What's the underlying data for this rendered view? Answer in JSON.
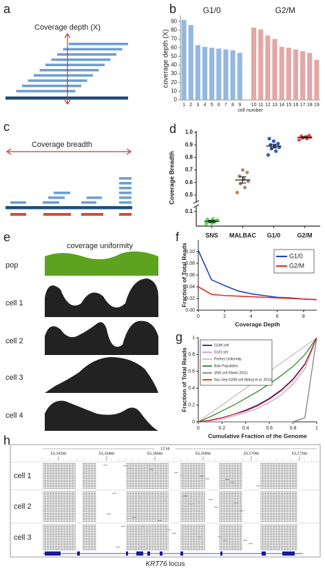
{
  "panel_labels": [
    "a",
    "b",
    "c",
    "d",
    "e",
    "f",
    "g",
    "h"
  ],
  "schematic_a": {
    "title": "Coverage depth (X)"
  },
  "schematic_c": {
    "title": "Coverage breadth"
  },
  "schematic_e": {
    "title": "coverage uniformity",
    "rows": [
      "pop",
      "cell 1",
      "cell 2",
      "cell 3",
      "cell 4"
    ]
  },
  "chart_data": [
    {
      "type": "bar",
      "ylabel": "coverage depth (X)",
      "xlabel": "cell number",
      "categories": [
        "1",
        "2",
        "3",
        "4",
        "5",
        "6",
        "7",
        "8",
        "9",
        null,
        "10",
        "11",
        "12",
        "13",
        "14",
        "15",
        "16",
        "17",
        "18",
        "19"
      ],
      "series": [
        {
          "name": "G1/0",
          "color": "#94b8de",
          "values": [
            92,
            86,
            63,
            61,
            60,
            59,
            58,
            57,
            54,
            null,
            null,
            null,
            null,
            null,
            null,
            null,
            null,
            null,
            null,
            null
          ]
        },
        {
          "name": "G2/M",
          "color": "#e3a7a7",
          "values": [
            null,
            null,
            null,
            null,
            null,
            null,
            null,
            null,
            null,
            null,
            83,
            81,
            74,
            70,
            61,
            60,
            58,
            56,
            54,
            46
          ]
        }
      ],
      "ylim": [
        0,
        95
      ],
      "yticks": [
        0,
        10,
        20,
        30,
        40,
        50,
        60,
        70,
        80,
        90
      ]
    },
    {
      "type": "dot",
      "ylabel": "Coverage Breadth",
      "categories": [
        "SNS",
        "MALBAC",
        "G1/0",
        "G2/M"
      ],
      "colors": [
        "#5cd65c",
        "#b08a6a",
        "#2e5fb8",
        "#d9534f"
      ],
      "points": [
        [
          0.05,
          0.055,
          0.06,
          0.065,
          0.07,
          0.058,
          0.062,
          0.052,
          0.068,
          0.06
        ],
        [
          0.52,
          0.56,
          0.59,
          0.61,
          0.63,
          0.65,
          0.68,
          0.7
        ],
        [
          0.82,
          0.85,
          0.87,
          0.88,
          0.89,
          0.9,
          0.91,
          0.93,
          0.95
        ],
        [
          0.94,
          0.95,
          0.955,
          0.96,
          0.965,
          0.97,
          0.975
        ]
      ],
      "means": [
        0.06,
        0.62,
        0.89,
        0.96
      ],
      "errors": [
        0.004,
        0.025,
        0.015,
        0.005
      ],
      "ylim": [
        0.04,
        1.0
      ],
      "ybreak": [
        0.12,
        0.45
      ],
      "yticks": [
        0.1,
        0.5,
        0.6,
        0.7,
        0.8,
        0.9,
        {
          "value": 1.0,
          "label": "1.0"
        }
      ]
    },
    {
      "type": "line",
      "ylabel": "Fraction of Total Reads",
      "xlabel": "Coverage Depth",
      "x": [
        0,
        1,
        2,
        3,
        4,
        5,
        6,
        7,
        8,
        9
      ],
      "series": [
        {
          "name": "G1/0",
          "color": "#1f3fc4",
          "values": [
            0.102,
            0.052,
            0.042,
            0.033,
            0.028,
            0.025,
            0.022,
            0.021,
            0.019,
            0.018
          ]
        },
        {
          "name": "G2/M",
          "color": "#e0301e",
          "values": [
            0.04,
            0.027,
            0.025,
            0.024,
            0.023,
            0.022,
            0.021,
            0.02,
            0.019,
            0.018
          ]
        }
      ],
      "xlim": [
        0,
        9
      ],
      "xticks": [
        0,
        2,
        4,
        6,
        8
      ],
      "ylim": [
        0,
        0.12
      ],
      "yticks": [
        {
          "value": 0,
          "label": "0.00"
        },
        0.02,
        0.04,
        0.06,
        0.08,
        {
          "value": 0.1,
          "label": "0.10"
        }
      ],
      "legend": "upper right"
    },
    {
      "type": "line",
      "ylabel": "Fraction of Total Reads",
      "xlabel": "Cumulative Fraction of the Genome",
      "x": [
        0,
        0.1,
        0.2,
        0.3,
        0.4,
        0.5,
        0.6,
        0.7,
        0.8,
        0.9,
        1
      ],
      "series": [
        {
          "name": "G2/M cell",
          "color": "#1a1a8c",
          "values": [
            0,
            0.02,
            0.05,
            0.09,
            0.14,
            0.2,
            0.28,
            0.38,
            0.51,
            0.69,
            1
          ]
        },
        {
          "name": "G1/0 cell",
          "color": "#c89ac8",
          "values": [
            0,
            0.012,
            0.035,
            0.07,
            0.11,
            0.16,
            0.23,
            0.32,
            0.45,
            0.63,
            1
          ]
        },
        {
          "name": "Perfect Uniformity",
          "color": "#c8b4b4",
          "values": [
            0,
            0.1,
            0.2,
            0.3,
            0.4,
            0.5,
            0.6,
            0.7,
            0.8,
            0.9,
            1
          ]
        },
        {
          "name": "Bulk Population",
          "color": "#1e7b1e",
          "values": [
            0,
            0.06,
            0.13,
            0.2,
            0.28,
            0.36,
            0.45,
            0.55,
            0.66,
            0.8,
            1
          ]
        },
        {
          "name": "SNS cell (Navin 2011)",
          "color": "#777777",
          "values": [
            0,
            0,
            0,
            0,
            0,
            0,
            0,
            0,
            0,
            0.05,
            1
          ]
        },
        {
          "name": "Nuc-Seq G2/M cell (Wang et al. 2014)",
          "color": "#d62020",
          "values": [
            0,
            0.02,
            0.05,
            0.09,
            0.13,
            0.19,
            0.27,
            0.37,
            0.5,
            0.68,
            1
          ]
        }
      ],
      "xlim": [
        0,
        1
      ],
      "xticks": [
        0,
        0.2,
        0.4,
        0.6,
        0.8,
        1
      ],
      "ylim": [
        0,
        1
      ],
      "yticks": [
        0,
        0.2,
        0.4,
        0.6,
        0.8,
        1
      ],
      "legend": "upper left"
    }
  ],
  "genome_browser": {
    "scale": "12 kb",
    "positions": [
      "53,162kb",
      "53,164kb",
      "53,166kb",
      "53,168kb",
      "53,170kb",
      "53,172kb"
    ],
    "tracks": [
      "cell 1",
      "cell 2",
      "cell 3"
    ],
    "gene": "KRT76",
    "caption": "locus"
  }
}
